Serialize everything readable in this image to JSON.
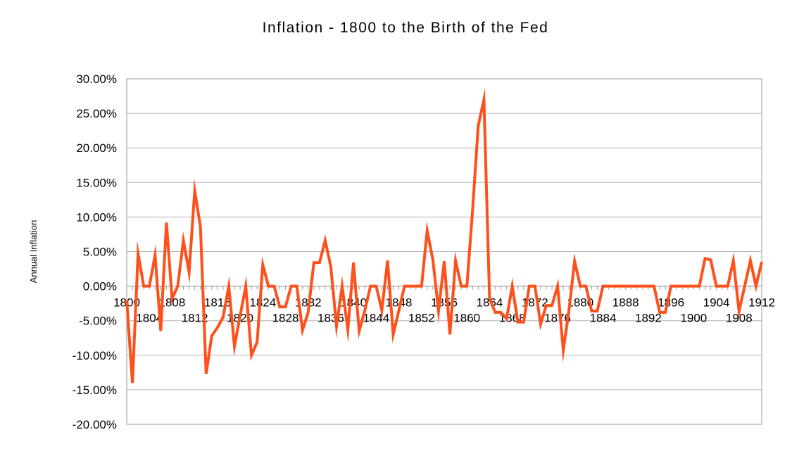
{
  "chart_data": {
    "type": "line",
    "title": "Inflation - 1800 to the Birth of the Fed",
    "xlabel": "",
    "ylabel": "Annual Inflation",
    "ylim": [
      -0.2,
      0.3
    ],
    "xlim": [
      1800,
      1912
    ],
    "grid": true,
    "legend": "none",
    "line_color": "#ff4f1a",
    "y_ticks": [
      {
        "value": 0.3,
        "label": "30.00%"
      },
      {
        "value": 0.25,
        "label": "25.00%"
      },
      {
        "value": 0.2,
        "label": "20.00%"
      },
      {
        "value": 0.15,
        "label": "15.00%"
      },
      {
        "value": 0.1,
        "label": "10.00%"
      },
      {
        "value": 0.05,
        "label": "5.00%"
      },
      {
        "value": 0.0,
        "label": "0.00%"
      },
      {
        "value": -0.05,
        "label": "-5.00%"
      },
      {
        "value": -0.1,
        "label": "-10.00%"
      },
      {
        "value": -0.15,
        "label": "-15.00%"
      },
      {
        "value": -0.2,
        "label": "-20.00%"
      }
    ],
    "x_ticks_upper": [
      {
        "value": 1800,
        "label": "1800"
      },
      {
        "value": 1808,
        "label": "1808"
      },
      {
        "value": 1816,
        "label": "1816"
      },
      {
        "value": 1824,
        "label": "1824"
      },
      {
        "value": 1832,
        "label": "1832"
      },
      {
        "value": 1840,
        "label": "1840"
      },
      {
        "value": 1848,
        "label": "1848"
      },
      {
        "value": 1856,
        "label": "1856"
      },
      {
        "value": 1864,
        "label": "1864"
      },
      {
        "value": 1872,
        "label": "1872"
      },
      {
        "value": 1880,
        "label": "1880"
      },
      {
        "value": 1888,
        "label": "1888"
      },
      {
        "value": 1896,
        "label": "1896"
      },
      {
        "value": 1904,
        "label": "1904"
      },
      {
        "value": 1912,
        "label": "1912"
      }
    ],
    "x_ticks_lower": [
      {
        "value": 1804,
        "label": "1804"
      },
      {
        "value": 1812,
        "label": "1812"
      },
      {
        "value": 1820,
        "label": "1820"
      },
      {
        "value": 1828,
        "label": "1828"
      },
      {
        "value": 1836,
        "label": "1836"
      },
      {
        "value": 1844,
        "label": "1844"
      },
      {
        "value": 1852,
        "label": "1852"
      },
      {
        "value": 1860,
        "label": "1860"
      },
      {
        "value": 1868,
        "label": "1868"
      },
      {
        "value": 1876,
        "label": "1876"
      },
      {
        "value": 1884,
        "label": "1884"
      },
      {
        "value": 1892,
        "label": "1892"
      },
      {
        "value": 1900,
        "label": "1900"
      },
      {
        "value": 1908,
        "label": "1908"
      }
    ],
    "series": [
      {
        "x": [
          1800,
          1801,
          1802,
          1803,
          1804,
          1805,
          1806,
          1807,
          1808,
          1809,
          1810,
          1811,
          1812,
          1813,
          1814,
          1815,
          1816,
          1817,
          1818,
          1819,
          1820,
          1821,
          1822,
          1823,
          1824,
          1825,
          1826,
          1827,
          1828,
          1829,
          1830,
          1831,
          1832,
          1833,
          1834,
          1835,
          1836,
          1837,
          1838,
          1839,
          1840,
          1841,
          1842,
          1843,
          1844,
          1845,
          1846,
          1847,
          1848,
          1849,
          1850,
          1851,
          1852,
          1853,
          1854,
          1855,
          1856,
          1857,
          1858,
          1859,
          1860,
          1861,
          1862,
          1863,
          1864,
          1865,
          1866,
          1867,
          1868,
          1869,
          1870,
          1871,
          1872,
          1873,
          1874,
          1875,
          1876,
          1877,
          1878,
          1879,
          1880,
          1881,
          1882,
          1883,
          1884,
          1885,
          1886,
          1887,
          1888,
          1889,
          1890,
          1891,
          1892,
          1893,
          1894,
          1895,
          1896,
          1897,
          1898,
          1899,
          1900,
          1901,
          1902,
          1903,
          1904,
          1905,
          1906,
          1907,
          1908,
          1909,
          1910,
          1911,
          1912
        ],
        "values": [
          -0.02,
          -0.14,
          0.047,
          0.0,
          0.0,
          0.045,
          -0.065,
          0.092,
          -0.018,
          0.0,
          0.066,
          0.02,
          0.138,
          0.086,
          -0.127,
          -0.072,
          -0.06,
          -0.045,
          0.0,
          -0.087,
          -0.043,
          0.0,
          -0.1,
          -0.081,
          0.031,
          0.0,
          0.0,
          -0.03,
          -0.03,
          0.0,
          0.0,
          -0.064,
          -0.038,
          0.034,
          0.034,
          0.066,
          0.028,
          -0.058,
          0.0,
          -0.063,
          0.034,
          -0.065,
          -0.035,
          0.0,
          0.0,
          -0.035,
          0.037,
          -0.07,
          -0.035,
          0.0,
          0.0,
          0.0,
          0.0,
          0.08,
          0.038,
          -0.036,
          0.036,
          -0.07,
          0.037,
          0.0,
          0.0,
          0.11,
          0.232,
          0.27,
          -0.018,
          -0.038,
          -0.038,
          -0.047,
          0.0,
          -0.052,
          -0.052,
          0.0,
          0.0,
          -0.055,
          -0.028,
          -0.028,
          0.0,
          -0.093,
          -0.035,
          0.036,
          0.0,
          0.0,
          -0.036,
          -0.036,
          0.0,
          0.0,
          0.0,
          0.0,
          0.0,
          0.0,
          0.0,
          0.0,
          0.0,
          0.0,
          -0.038,
          -0.038,
          0.0,
          0.0,
          0.0,
          0.0,
          0.0,
          0.0,
          0.04,
          0.038,
          0.0,
          0.0,
          0.0,
          0.037,
          -0.036,
          0.0,
          0.037,
          0.0,
          0.035
        ]
      }
    ]
  }
}
